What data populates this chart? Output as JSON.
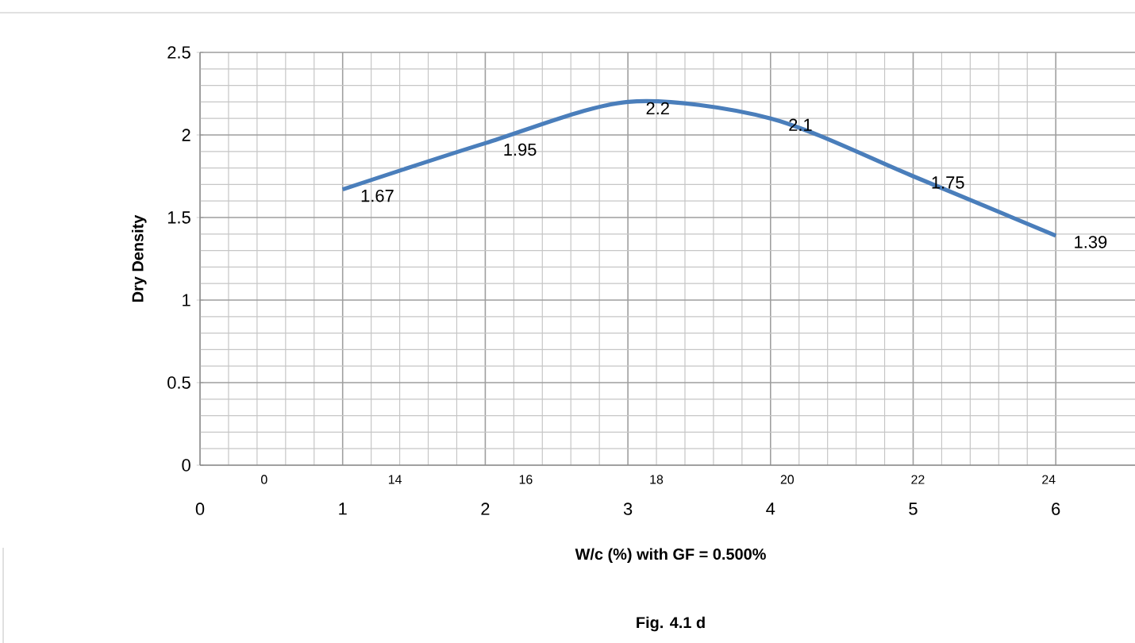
{
  "chart_data": {
    "type": "line",
    "xlabel": "W/c (%) with GF = 0.500%",
    "ylabel": "Dry Density",
    "annotations": [
      "0",
      "14",
      "16",
      "18",
      "20",
      "22",
      "24",
      "Fig. 4.1 d"
    ],
    "x": [
      1,
      2,
      3,
      4,
      5,
      6
    ],
    "series": [
      {
        "color": "#4a7ebb",
        "values": [
          1.67,
          1.95,
          2.2,
          2.1,
          1.75,
          1.39
        ]
      }
    ],
    "data_labels": true,
    "xlim": [
      0,
      6.6
    ],
    "xticks": [
      0,
      1,
      2,
      3,
      4,
      5,
      6
    ],
    "ylim": [
      0,
      2.5
    ],
    "yticks": [
      0,
      0.5,
      1,
      1.5,
      2,
      2.5
    ],
    "grid": true,
    "marker": "none",
    "line_style": "solid"
  }
}
